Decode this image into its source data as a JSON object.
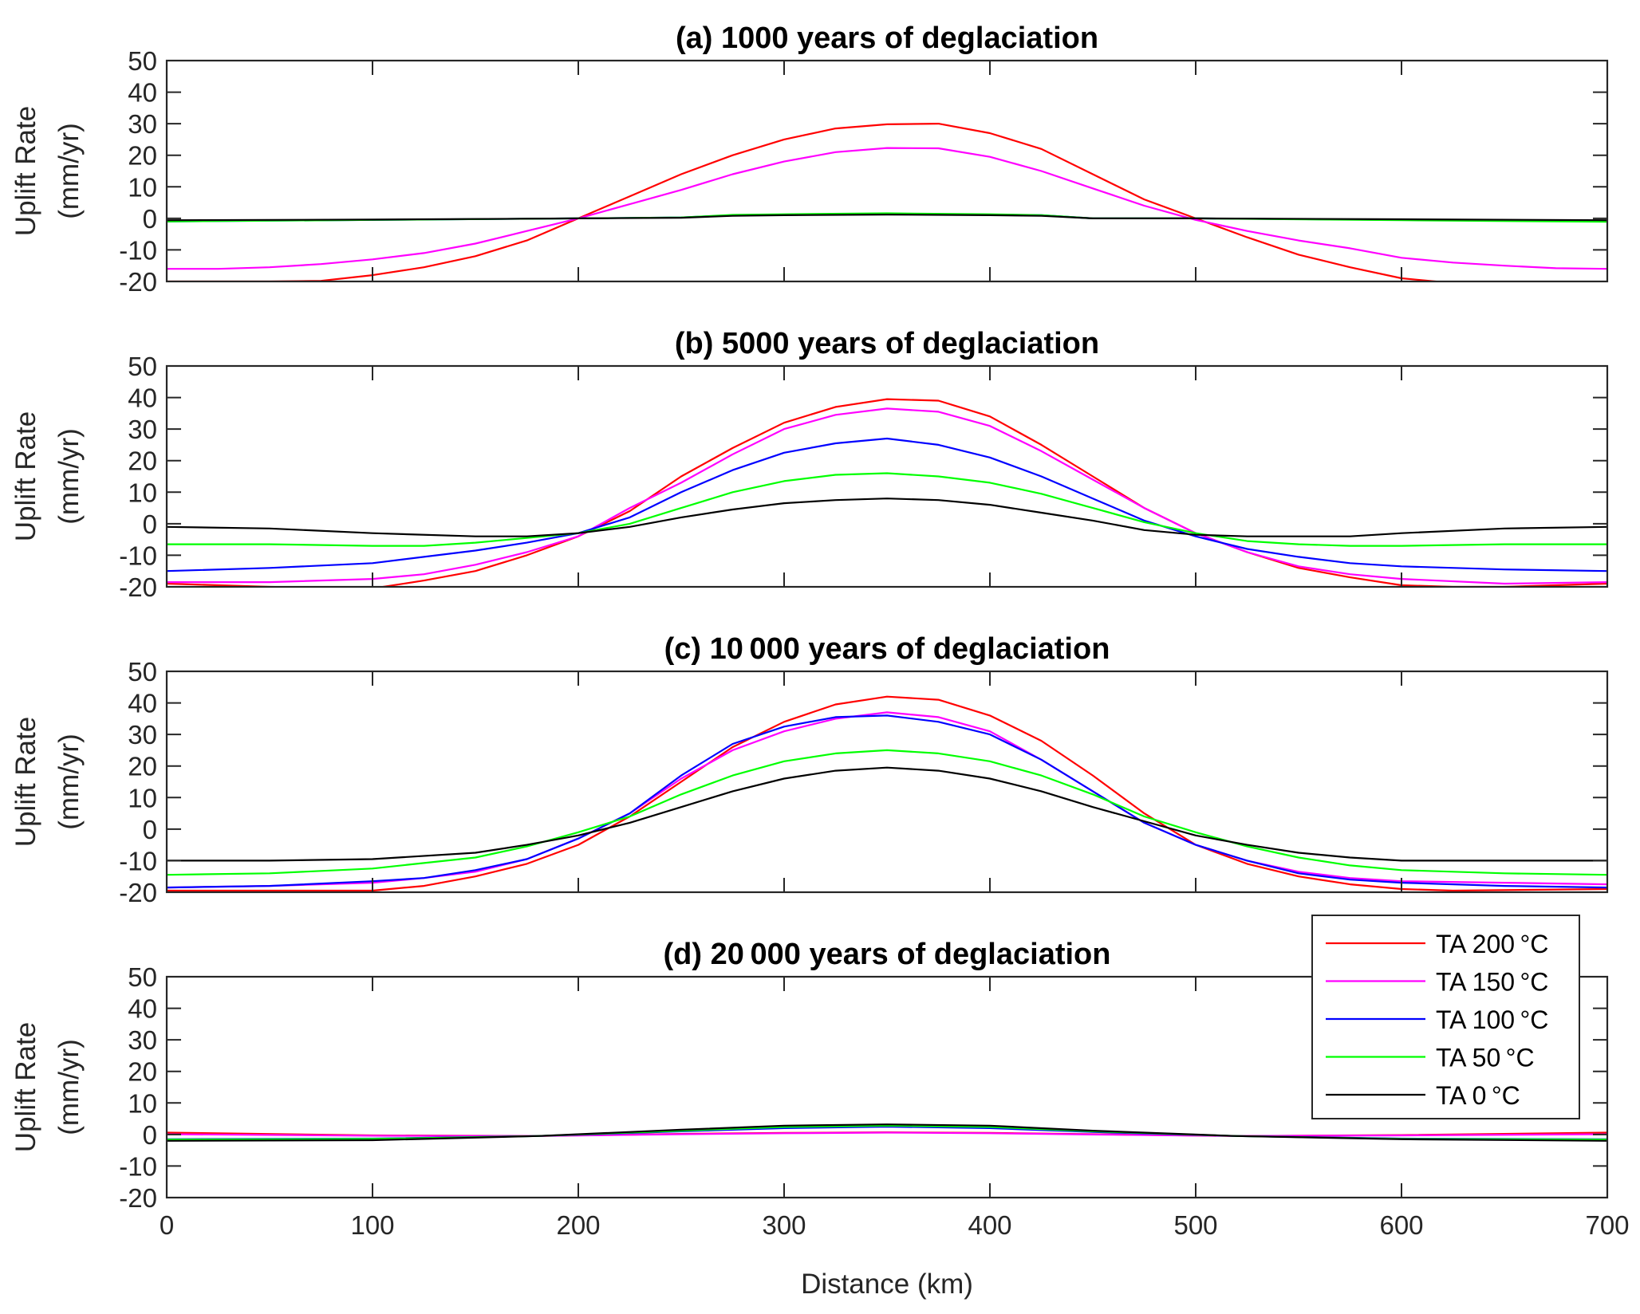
{
  "chart_data": {
    "type": "line",
    "figure_xlabel": "Distance (km)",
    "xlim": [
      0,
      700
    ],
    "x_ticks": [
      "0",
      "100",
      "200",
      "300",
      "400",
      "500",
      "600",
      "700"
    ],
    "legend": {
      "placement": "inside panel (d), top-right",
      "entries": [
        {
          "key": "ta200",
          "label": "TA 200 °C",
          "color": "#ff0000"
        },
        {
          "key": "ta150",
          "label": "TA 150 °C",
          "color": "#ff00ff"
        },
        {
          "key": "ta100",
          "label": "TA 100 °C",
          "color": "#0000ff"
        },
        {
          "key": "ta50",
          "label": "TA 50 °C",
          "color": "#00ff00"
        },
        {
          "key": "ta0",
          "label": "TA 0 °C",
          "color": "#000000"
        }
      ]
    },
    "panels": [
      {
        "title": "(a) 1000 years of deglaciation",
        "ylabel_line1": "Uplift Rate",
        "ylabel_line2": "(mm/yr)",
        "ylim": [
          -20,
          50
        ],
        "y_ticks": [
          "50",
          "40",
          "30",
          "20",
          "10",
          "0",
          "-10",
          "-20"
        ],
        "grid": false,
        "series": [
          {
            "key": "ta200",
            "x": [
              0,
              25,
              50,
              75,
              100,
              125,
              150,
              175,
              200,
              225,
              250,
              275,
              300,
              325,
              350,
              375,
              400,
              425,
              450,
              475,
              500,
              525,
              550,
              575,
              600,
              625,
              650,
              675,
              700
            ],
            "y": [
              -20,
              -20,
              -20,
              -19.8,
              -18,
              -15.5,
              -12,
              -7,
              0,
              7,
              14,
              20,
              25,
              28.5,
              29.8,
              30,
              27,
              22,
              14,
              6,
              0,
              -6,
              -11.5,
              -15.5,
              -19,
              -20.5,
              -22,
              -23,
              -23.5
            ]
          },
          {
            "key": "ta150",
            "x": [
              0,
              25,
              50,
              75,
              100,
              125,
              150,
              175,
              200,
              225,
              250,
              275,
              300,
              325,
              350,
              375,
              400,
              425,
              450,
              475,
              500,
              525,
              550,
              575,
              600,
              625,
              650,
              675,
              700
            ],
            "y": [
              -16,
              -16,
              -15.5,
              -14.5,
              -13,
              -11,
              -8,
              -4,
              0,
              4.5,
              9,
              14,
              18,
              21,
              22.3,
              22.2,
              19.5,
              15,
              9.5,
              4,
              -0.5,
              -4,
              -7,
              -9.5,
              -12.5,
              -14,
              -15,
              -15.8,
              -16
            ]
          },
          {
            "key": "ta100",
            "x": [
              0,
              100,
              200,
              250,
              275,
              300,
              350,
              400,
              425,
              450,
              500,
              600,
              700
            ],
            "y": [
              -1,
              -0.5,
              0,
              0.3,
              1,
              1.2,
              1.5,
              1.2,
              1,
              0,
              0,
              -0.5,
              -1
            ]
          },
          {
            "key": "ta50",
            "x": [
              0,
              100,
              200,
              250,
              275,
              300,
              350,
              400,
              425,
              450,
              500,
              600,
              700
            ],
            "y": [
              -1,
              -0.5,
              0,
              0.3,
              1.1,
              1.3,
              1.6,
              1.3,
              1,
              0,
              0,
              -0.6,
              -1.1
            ]
          },
          {
            "key": "ta0",
            "x": [
              0,
              100,
              200,
              250,
              275,
              300,
              350,
              400,
              425,
              450,
              500,
              600,
              700
            ],
            "y": [
              -0.6,
              -0.4,
              0,
              0.2,
              0.8,
              1,
              1.2,
              1,
              0.8,
              0,
              0,
              -0.3,
              -0.6
            ]
          }
        ]
      },
      {
        "title": "(b) 5000 years of deglaciation",
        "ylabel_line1": "Uplift Rate",
        "ylabel_line2": "(mm/yr)",
        "ylim": [
          -20,
          50
        ],
        "y_ticks": [
          "50",
          "40",
          "30",
          "20",
          "10",
          "0",
          "-10",
          "-20"
        ],
        "grid": false,
        "series": [
          {
            "key": "ta200",
            "x": [
              0,
              50,
              100,
              125,
              150,
              175,
              200,
              225,
              250,
              275,
              300,
              325,
              350,
              375,
              400,
              425,
              450,
              475,
              500,
              525,
              550,
              575,
              600,
              625,
              650,
              675,
              700
            ],
            "y": [
              -19,
              -20,
              -20.5,
              -18,
              -15,
              -10,
              -4,
              4,
              15,
              24,
              32,
              37,
              39.5,
              39,
              34,
              25,
              15,
              5,
              -3,
              -9,
              -14,
              -17,
              -19.5,
              -20,
              -20,
              -19.5,
              -19
            ]
          },
          {
            "key": "ta150",
            "x": [
              0,
              50,
              100,
              125,
              150,
              175,
              200,
              225,
              250,
              275,
              300,
              325,
              350,
              375,
              400,
              425,
              450,
              475,
              500,
              525,
              550,
              575,
              600,
              650,
              700
            ],
            "y": [
              -18.5,
              -18.5,
              -17.5,
              -16,
              -13,
              -9,
              -4,
              5,
              13,
              22,
              30,
              34.5,
              36.5,
              35.5,
              31,
              23,
              14,
              5,
              -3,
              -9,
              -13.5,
              -16,
              -17.5,
              -19,
              -18.5
            ]
          },
          {
            "key": "ta100",
            "x": [
              0,
              50,
              100,
              150,
              175,
              200,
              225,
              250,
              275,
              300,
              325,
              350,
              375,
              400,
              425,
              450,
              475,
              500,
              525,
              550,
              575,
              600,
              650,
              700
            ],
            "y": [
              -15,
              -14,
              -12.5,
              -8.5,
              -6,
              -3,
              2,
              10,
              17,
              22.5,
              25.5,
              27,
              25,
              21,
              15,
              8,
              1,
              -4,
              -8,
              -10.5,
              -12.5,
              -13.5,
              -14.5,
              -15
            ]
          },
          {
            "key": "ta50",
            "x": [
              0,
              50,
              100,
              125,
              150,
              175,
              200,
              225,
              250,
              275,
              300,
              325,
              350,
              375,
              400,
              425,
              450,
              475,
              500,
              525,
              550,
              575,
              600,
              650,
              700
            ],
            "y": [
              -6.5,
              -6.5,
              -7,
              -7,
              -6,
              -4.5,
              -3,
              0,
              5,
              10,
              13.5,
              15.5,
              16,
              15,
              13,
              9.5,
              5,
              0.5,
              -3,
              -5.5,
              -6.5,
              -7,
              -7,
              -6.5,
              -6.5
            ]
          },
          {
            "key": "ta0",
            "x": [
              0,
              50,
              100,
              150,
              175,
              200,
              225,
              250,
              275,
              300,
              325,
              350,
              375,
              400,
              425,
              450,
              475,
              500,
              525,
              550,
              575,
              600,
              650,
              700
            ],
            "y": [
              -1,
              -1.5,
              -3,
              -4,
              -4,
              -3,
              -1,
              2,
              4.5,
              6.5,
              7.5,
              8,
              7.5,
              6,
              3.5,
              1,
              -2,
              -3.5,
              -4,
              -4,
              -4,
              -3,
              -1.5,
              -1
            ]
          }
        ]
      },
      {
        "title": "(c) 10 000 years of deglaciation",
        "ylabel_line1": "Uplift Rate",
        "ylabel_line2": "(mm/yr)",
        "ylim": [
          -20,
          50
        ],
        "y_ticks": [
          "50",
          "40",
          "30",
          "20",
          "10",
          "0",
          "-10",
          "-20"
        ],
        "grid": false,
        "series": [
          {
            "key": "ta200",
            "x": [
              0,
              50,
              100,
              125,
              150,
              175,
              200,
              225,
              250,
              275,
              300,
              325,
              350,
              375,
              400,
              425,
              450,
              475,
              500,
              525,
              550,
              575,
              600,
              625,
              700
            ],
            "y": [
              -19.5,
              -19.5,
              -19.5,
              -18,
              -15,
              -11,
              -5,
              4,
              15,
              26,
              34,
              39.5,
              42,
              41,
              36,
              28,
              17,
              5,
              -5,
              -11,
              -15,
              -17.5,
              -19,
              -19.5,
              -19
            ]
          },
          {
            "key": "ta150",
            "x": [
              0,
              50,
              100,
              125,
              150,
              175,
              200,
              225,
              250,
              275,
              300,
              325,
              350,
              375,
              400,
              425,
              450,
              475,
              500,
              525,
              550,
              575,
              600,
              650,
              700
            ],
            "y": [
              -18.5,
              -18,
              -17,
              -15.5,
              -13.5,
              -9.5,
              -3,
              5,
              16,
              25,
              31,
              35,
              37,
              35.5,
              31,
              22,
              12,
              2,
              -5,
              -10,
              -13.5,
              -15.5,
              -16.5,
              -17,
              -17.5
            ]
          },
          {
            "key": "ta100",
            "x": [
              0,
              50,
              100,
              125,
              150,
              175,
              200,
              225,
              250,
              275,
              300,
              325,
              350,
              375,
              400,
              425,
              450,
              475,
              500,
              525,
              550,
              575,
              600,
              650,
              700
            ],
            "y": [
              -18.5,
              -18,
              -16.5,
              -15.5,
              -13,
              -9.5,
              -3,
              5,
              17,
              27,
              32.5,
              35.5,
              36,
              34,
              30,
              22,
              12,
              2,
              -5,
              -10,
              -14,
              -16,
              -17,
              -18,
              -18.5
            ]
          },
          {
            "key": "ta50",
            "x": [
              0,
              50,
              100,
              150,
              175,
              200,
              225,
              250,
              275,
              300,
              325,
              350,
              375,
              400,
              425,
              450,
              475,
              500,
              525,
              550,
              575,
              600,
              650,
              700
            ],
            "y": [
              -14.5,
              -14,
              -12.5,
              -9,
              -5.5,
              -1,
              4,
              11,
              17,
              21.5,
              24,
              25,
              24,
              21.5,
              17,
              11,
              4,
              -1,
              -5.5,
              -9,
              -11.5,
              -13,
              -14,
              -14.5
            ]
          },
          {
            "key": "ta0",
            "x": [
              0,
              50,
              100,
              150,
              175,
              200,
              225,
              250,
              275,
              300,
              325,
              350,
              375,
              400,
              425,
              450,
              475,
              500,
              525,
              550,
              575,
              600,
              650,
              700
            ],
            "y": [
              -10,
              -10,
              -9.5,
              -7.5,
              -5,
              -2,
              2,
              7,
              12,
              16,
              18.5,
              19.5,
              18.5,
              16,
              12,
              7,
              2.5,
              -2,
              -5,
              -7.5,
              -9,
              -10,
              -10,
              -10
            ]
          }
        ]
      },
      {
        "title": "(d) 20 000 years of deglaciation",
        "ylabel_line1": "Uplift Rate",
        "ylabel_line2": "(mm/yr)",
        "ylim": [
          -20,
          50
        ],
        "y_ticks": [
          "50",
          "40",
          "30",
          "20",
          "10",
          "0",
          "-10",
          "-20"
        ],
        "grid": false,
        "series": [
          {
            "key": "ta200",
            "x": [
              0,
              100,
              180,
              250,
              300,
              350,
              400,
              450,
              520,
              600,
              700
            ],
            "y": [
              0.6,
              -0.3,
              -0.5,
              0.2,
              0.5,
              0.7,
              0.5,
              0.1,
              -0.5,
              -0.2,
              0.6
            ]
          },
          {
            "key": "ta150",
            "x": [
              0,
              100,
              180,
              250,
              300,
              350,
              400,
              450,
              520,
              600,
              700
            ],
            "y": [
              0.1,
              -0.4,
              -0.5,
              0.1,
              0.4,
              0.6,
              0.4,
              0,
              -0.5,
              -0.3,
              0.1
            ]
          },
          {
            "key": "ta100",
            "x": [
              0,
              100,
              180,
              250,
              300,
              350,
              400,
              450,
              520,
              600,
              700
            ],
            "y": [
              -1.5,
              -1.3,
              -0.5,
              1,
              2,
              2.5,
              2,
              0.8,
              -0.5,
              -1.3,
              -1.5
            ]
          },
          {
            "key": "ta50",
            "x": [
              0,
              100,
              180,
              250,
              300,
              350,
              400,
              450,
              520,
              600,
              700
            ],
            "y": [
              -1.6,
              -1.4,
              -0.5,
              1.2,
              2.4,
              2.8,
              2.4,
              1,
              -0.5,
              -1.4,
              -1.6
            ]
          },
          {
            "key": "ta0",
            "x": [
              0,
              100,
              180,
              250,
              300,
              350,
              400,
              450,
              520,
              600,
              700
            ],
            "y": [
              -2,
              -1.8,
              -0.5,
              1.5,
              2.8,
              3.2,
              2.8,
              1.2,
              -0.5,
              -1.5,
              -2
            ]
          }
        ]
      }
    ]
  }
}
